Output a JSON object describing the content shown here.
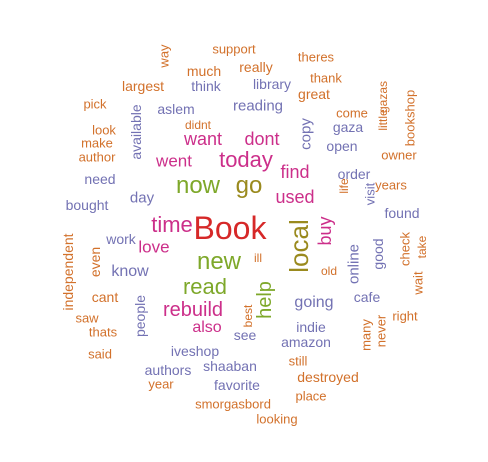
{
  "palette": {
    "red": "#d62828",
    "green": "#7ea82a",
    "olive": "#9a8a1e",
    "pink": "#cc2f8a",
    "purple": "#7372b3",
    "orange": "#d2712b"
  },
  "words": [
    {
      "text": "Book",
      "color": "red"
    },
    {
      "text": "local",
      "color": "olive"
    },
    {
      "text": "now",
      "color": "green"
    },
    {
      "text": "go",
      "color": "olive"
    },
    {
      "text": "new",
      "color": "green"
    },
    {
      "text": "time",
      "color": "pink"
    },
    {
      "text": "today",
      "color": "pink"
    },
    {
      "text": "read",
      "color": "green"
    },
    {
      "text": "rebuild",
      "color": "pink"
    },
    {
      "text": "help",
      "color": "green"
    },
    {
      "text": "used",
      "color": "pink"
    },
    {
      "text": "want",
      "color": "pink"
    },
    {
      "text": "dont",
      "color": "pink"
    },
    {
      "text": "love",
      "color": "pink"
    },
    {
      "text": "find",
      "color": "pink"
    },
    {
      "text": "buy",
      "color": "pink"
    },
    {
      "text": "went",
      "color": "pink"
    },
    {
      "text": "know",
      "color": "purple"
    },
    {
      "text": "also",
      "color": "pink"
    },
    {
      "text": "going",
      "color": "purple"
    },
    {
      "text": "day",
      "color": "purple"
    },
    {
      "text": "copy",
      "color": "purple"
    },
    {
      "text": "online",
      "color": "purple"
    },
    {
      "text": "reading",
      "color": "purple"
    },
    {
      "text": "people",
      "color": "purple"
    },
    {
      "text": "work",
      "color": "purple"
    },
    {
      "text": "see",
      "color": "purple"
    },
    {
      "text": "indie",
      "color": "purple"
    },
    {
      "text": "amazon",
      "color": "purple"
    },
    {
      "text": "found",
      "color": "purple"
    },
    {
      "text": "cafe",
      "color": "purple"
    },
    {
      "text": "bought",
      "color": "purple"
    },
    {
      "text": "need",
      "color": "purple"
    },
    {
      "text": "open",
      "color": "purple"
    },
    {
      "text": "order",
      "color": "purple"
    },
    {
      "text": "gaza",
      "color": "purple"
    },
    {
      "text": "shaaban",
      "color": "purple"
    },
    {
      "text": "favorite",
      "color": "purple"
    },
    {
      "text": "authors",
      "color": "purple"
    },
    {
      "text": "iveshop",
      "color": "purple"
    },
    {
      "text": "think",
      "color": "purple"
    },
    {
      "text": "library",
      "color": "purple"
    },
    {
      "text": "aslem",
      "color": "purple"
    },
    {
      "text": "available",
      "color": "purple"
    },
    {
      "text": "good",
      "color": "purple"
    },
    {
      "text": "visit",
      "color": "purple"
    },
    {
      "text": "great",
      "color": "orange"
    },
    {
      "text": "really",
      "color": "orange"
    },
    {
      "text": "much",
      "color": "orange"
    },
    {
      "text": "largest",
      "color": "orange"
    },
    {
      "text": "support",
      "color": "orange"
    },
    {
      "text": "theres",
      "color": "orange"
    },
    {
      "text": "thank",
      "color": "orange"
    },
    {
      "text": "way",
      "color": "orange"
    },
    {
      "text": "pick",
      "color": "orange"
    },
    {
      "text": "didnt",
      "color": "orange"
    },
    {
      "text": "come",
      "color": "orange"
    },
    {
      "text": "make",
      "color": "orange"
    },
    {
      "text": "look",
      "color": "orange"
    },
    {
      "text": "author",
      "color": "orange"
    },
    {
      "text": "owner",
      "color": "orange"
    },
    {
      "text": "years",
      "color": "orange"
    },
    {
      "text": "bookshop",
      "color": "orange"
    },
    {
      "text": "little",
      "color": "orange"
    },
    {
      "text": "gazas",
      "color": "orange"
    },
    {
      "text": "life",
      "color": "orange"
    },
    {
      "text": "independent",
      "color": "orange"
    },
    {
      "text": "even",
      "color": "orange"
    },
    {
      "text": "cant",
      "color": "orange"
    },
    {
      "text": "saw",
      "color": "orange"
    },
    {
      "text": "thats",
      "color": "orange"
    },
    {
      "text": "said",
      "color": "orange"
    },
    {
      "text": "year",
      "color": "orange"
    },
    {
      "text": "smorgasbord",
      "color": "orange"
    },
    {
      "text": "looking",
      "color": "orange"
    },
    {
      "text": "place",
      "color": "orange"
    },
    {
      "text": "destroyed",
      "color": "orange"
    },
    {
      "text": "still",
      "color": "orange"
    },
    {
      "text": "many",
      "color": "orange"
    },
    {
      "text": "never",
      "color": "orange"
    },
    {
      "text": "right",
      "color": "orange"
    },
    {
      "text": "wait",
      "color": "orange"
    },
    {
      "text": "check",
      "color": "orange"
    },
    {
      "text": "take",
      "color": "orange"
    },
    {
      "text": "ill",
      "color": "orange"
    },
    {
      "text": "old",
      "color": "orange"
    },
    {
      "text": "best",
      "color": "orange"
    }
  ]
}
